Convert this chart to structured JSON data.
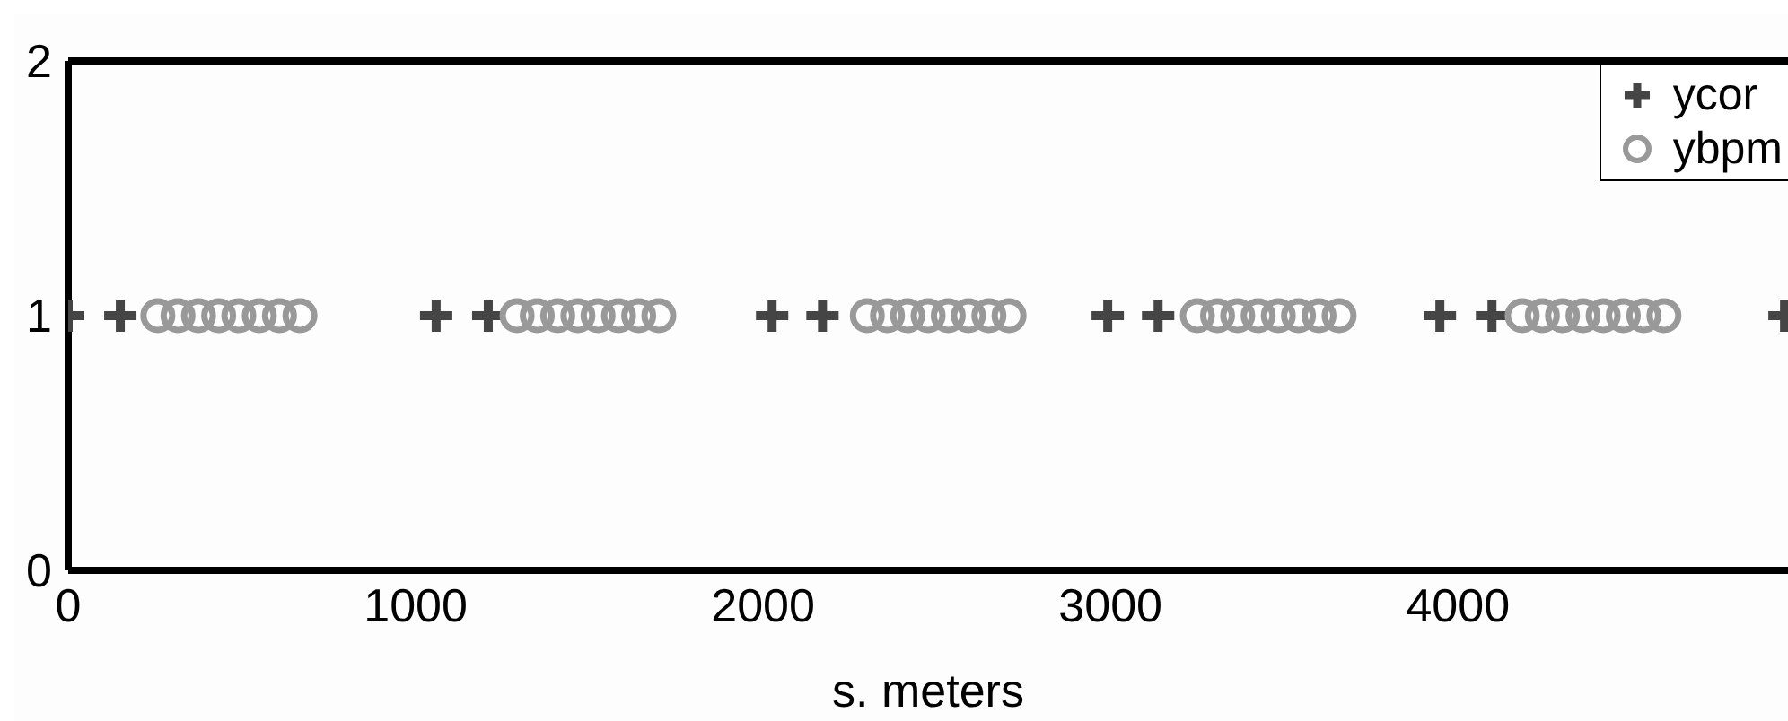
{
  "chart_data": {
    "type": "scatter",
    "xlabel": "s. meters",
    "xlim": [
      0,
      4950
    ],
    "ylim": [
      0,
      2
    ],
    "xticks": [
      0,
      1000,
      2000,
      3000,
      4000
    ],
    "yticks": [
      0,
      1,
      2
    ],
    "legend": "top right",
    "grid": false,
    "series": [
      {
        "name": "ycor",
        "color": "#454545",
        "marker": "cross",
        "x": [
          0,
          150,
          1059,
          1209,
          2026,
          2171,
          2992,
          3137,
          3948,
          4098,
          4940
        ],
        "values": [
          1,
          1,
          1,
          1,
          1,
          1,
          1,
          1,
          1,
          1,
          1
        ]
      },
      {
        "name": "ybpm",
        "color": "#999999",
        "marker": "circle",
        "x": [
          258,
          316,
          375,
          433,
          491,
          550,
          608,
          667,
          1292,
          1350,
          1409,
          1467,
          1525,
          1584,
          1642,
          1700,
          2300,
          2358,
          2416,
          2475,
          2533,
          2591,
          2650,
          2708,
          3250,
          3308,
          3366,
          3425,
          3483,
          3541,
          3600,
          3658,
          4185,
          4243,
          4301,
          4360,
          4418,
          4476,
          4535,
          4593
        ],
        "values": [
          1,
          1,
          1,
          1,
          1,
          1,
          1,
          1,
          1,
          1,
          1,
          1,
          1,
          1,
          1,
          1,
          1,
          1,
          1,
          1,
          1,
          1,
          1,
          1,
          1,
          1,
          1,
          1,
          1,
          1,
          1,
          1,
          1,
          1,
          1,
          1,
          1,
          1,
          1,
          1
        ]
      }
    ]
  }
}
